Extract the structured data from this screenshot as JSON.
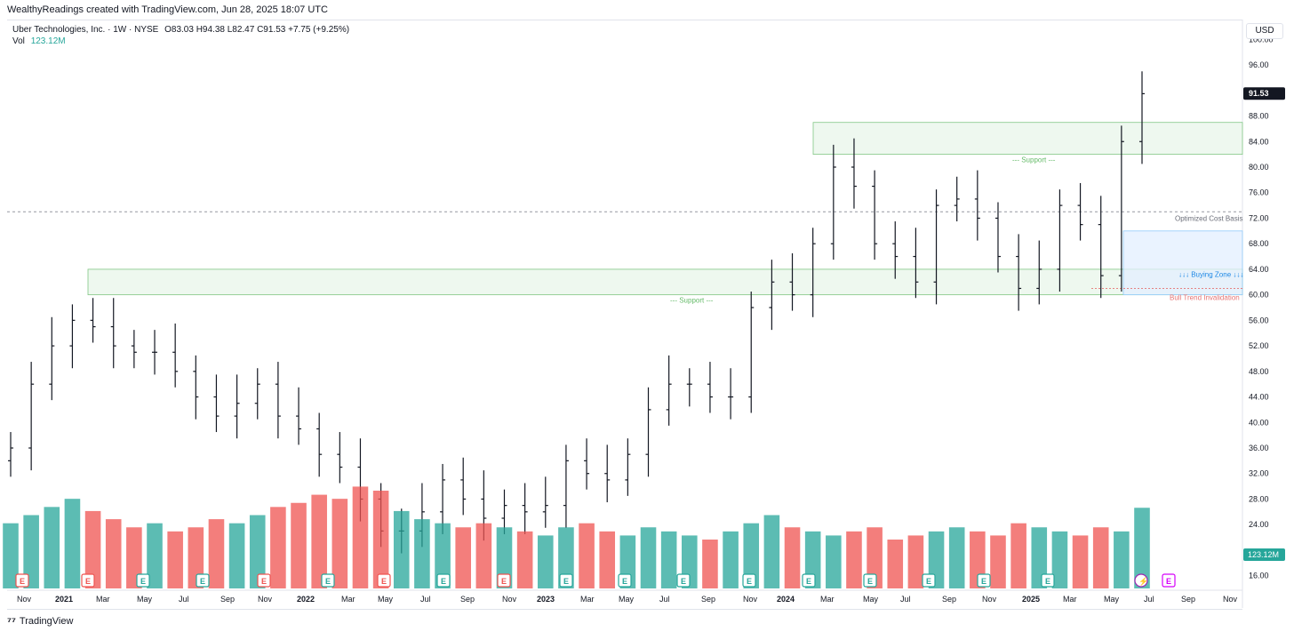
{
  "header": {
    "attribution": "WealthyReadings created with TradingView.com, Jun 28, 2025 18:07 UTC"
  },
  "legend": {
    "symbol_line": "Uber Technologies, Inc. · 1W · NYSE",
    "ohlc": "O83.03  H94.38  L82.47  C91.53  +7.75 (+9.25%)",
    "vol_label": "Vol",
    "vol_value": "123.12M"
  },
  "price_scale": {
    "currency": "USD",
    "ticks": [
      "100.00",
      "96.00",
      "88.00",
      "84.00",
      "80.00",
      "76.00",
      "72.00",
      "68.00",
      "64.00",
      "60.00",
      "56.00",
      "52.00",
      "48.00",
      "44.00",
      "40.00",
      "36.00",
      "32.00",
      "28.00",
      "24.00",
      "16.00"
    ],
    "last_price_label": "91.53",
    "vol_badge": "123.12M"
  },
  "time_axis": {
    "labels": [
      "Nov",
      "2021",
      "Mar",
      "May",
      "Jul",
      "Sep",
      "Nov",
      "2022",
      "Mar",
      "May",
      "Jul",
      "Sep",
      "Nov",
      "2023",
      "Mar",
      "May",
      "Jul",
      "Sep",
      "Nov",
      "2024",
      "Mar",
      "May",
      "Jul",
      "Sep",
      "Nov",
      "2025",
      "Mar",
      "May",
      "Jul",
      "Sep",
      "Nov"
    ]
  },
  "annotations": {
    "support_upper": "--- Support ---",
    "support_lower": "--- Support ---",
    "cost_basis": "Optimized Cost Basis",
    "buying_zone": "↓↓↓ Buying Zone ↓↓↓",
    "invalidation": "Bull Trend Invalidation"
  },
  "events": [
    {
      "label": "E",
      "kind": "miss"
    },
    {
      "label": "E",
      "kind": "miss"
    },
    {
      "label": "E",
      "kind": "beat"
    },
    {
      "label": "E",
      "kind": "beat"
    },
    {
      "label": "E",
      "kind": "miss"
    },
    {
      "label": "E",
      "kind": "beat"
    },
    {
      "label": "E",
      "kind": "miss"
    },
    {
      "label": "E",
      "kind": "beat"
    },
    {
      "label": "E",
      "kind": "miss"
    },
    {
      "label": "E",
      "kind": "beat"
    },
    {
      "label": "E",
      "kind": "beat"
    },
    {
      "label": "E",
      "kind": "beat"
    },
    {
      "label": "E",
      "kind": "beat"
    },
    {
      "label": "E",
      "kind": "beat"
    },
    {
      "label": "E",
      "kind": "beat"
    },
    {
      "label": "E",
      "kind": "beat"
    },
    {
      "label": "E",
      "kind": "beat"
    },
    {
      "label": "E",
      "kind": "beat"
    },
    {
      "label": "⚡",
      "kind": "split"
    },
    {
      "label": "E",
      "kind": "future"
    }
  ],
  "footer": {
    "brand": "TradingView"
  },
  "colors": {
    "bar": "#131722",
    "vol_up": "#26a69a",
    "vol_down": "#ef5350",
    "support_fill": "#e8f5e9",
    "support_line": "#81c784",
    "support_text": "#66bb6a",
    "buy_fill": "#e3efff",
    "buy_line": "#90caf9",
    "buy_text": "#1e88e5",
    "invalid_text": "#e57373",
    "grid_dash": "#9598a1"
  },
  "chart_data": {
    "type": "ohlc",
    "title": "Uber Technologies, Inc. · 1W · NYSE",
    "ylim": [
      14,
      102
    ],
    "y_axis_side": "right",
    "zones": [
      {
        "name": "support_upper",
        "low": 82,
        "high": 87
      },
      {
        "name": "support_lower",
        "low": 60,
        "high": 64
      },
      {
        "name": "buying_zone",
        "low": 60,
        "high": 70
      }
    ],
    "lines": [
      {
        "name": "cost_basis",
        "value": 73
      },
      {
        "name": "invalidation",
        "value": 61
      }
    ],
    "x": [
      "2020-11",
      "2020-12",
      "2021-01",
      "2021-02",
      "2021-03",
      "2021-04",
      "2021-05",
      "2021-06",
      "2021-07",
      "2021-08",
      "2021-09",
      "2021-10",
      "2021-11",
      "2021-12",
      "2022-01",
      "2022-02",
      "2022-03",
      "2022-04",
      "2022-05",
      "2022-06",
      "2022-07",
      "2022-08",
      "2022-09",
      "2022-10",
      "2022-11",
      "2022-12",
      "2023-01",
      "2023-02",
      "2023-03",
      "2023-04",
      "2023-05",
      "2023-06",
      "2023-07",
      "2023-08",
      "2023-09",
      "2023-10",
      "2023-11",
      "2023-12",
      "2024-01",
      "2024-02",
      "2024-03",
      "2024-04",
      "2024-05",
      "2024-06",
      "2024-07",
      "2024-08",
      "2024-09",
      "2024-10",
      "2024-11",
      "2024-12",
      "2025-01",
      "2025-02",
      "2025-03",
      "2025-04",
      "2025-05",
      "2025-06"
    ],
    "close": [
      36,
      46,
      52,
      56,
      55,
      52,
      51,
      51,
      48,
      44,
      41,
      43,
      46,
      41,
      39,
      35,
      33,
      28,
      23,
      23,
      26,
      31,
      28,
      25,
      27,
      26,
      27,
      34,
      32,
      31,
      35,
      42,
      46,
      46,
      44,
      44,
      58,
      62,
      60,
      68,
      80,
      77,
      68,
      66,
      62,
      74,
      75,
      72,
      66,
      61,
      64,
      74,
      71,
      63,
      84,
      91.5
    ],
    "volume_M": [
      16,
      18,
      20,
      22,
      19,
      17,
      15,
      16,
      14,
      15,
      17,
      16,
      18,
      20,
      21,
      23,
      22,
      25,
      24,
      19,
      17,
      16,
      15,
      16,
      15,
      14,
      13,
      15,
      16,
      14,
      13,
      15,
      14,
      13,
      12,
      14,
      16,
      18,
      15,
      14,
      13,
      14,
      15,
      12,
      13,
      14,
      15,
      14,
      13,
      16,
      15,
      14,
      13,
      15,
      14,
      123.12
    ]
  }
}
